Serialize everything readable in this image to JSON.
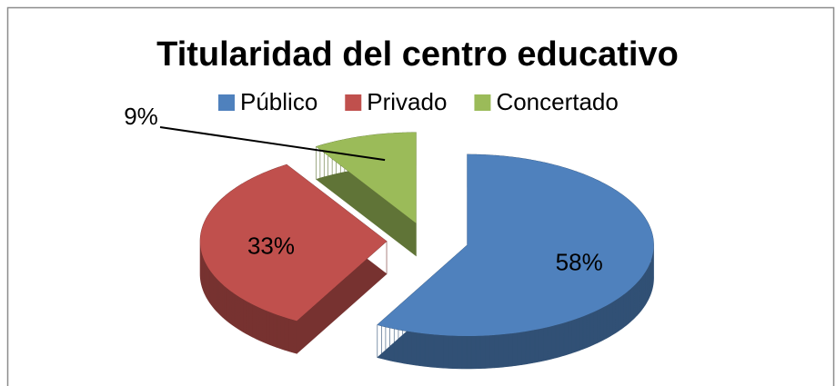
{
  "chart_data": {
    "type": "pie",
    "title": "Titularidad del centro educativo",
    "categories": [
      "Público",
      "Privado",
      "Concertado"
    ],
    "values": [
      58,
      33,
      9
    ],
    "value_labels": [
      "58%",
      "33%",
      "9%"
    ],
    "colors": [
      "#4f81bd",
      "#c0504d",
      "#9bbb59"
    ],
    "legend": "top",
    "style": "3d-exploded"
  }
}
